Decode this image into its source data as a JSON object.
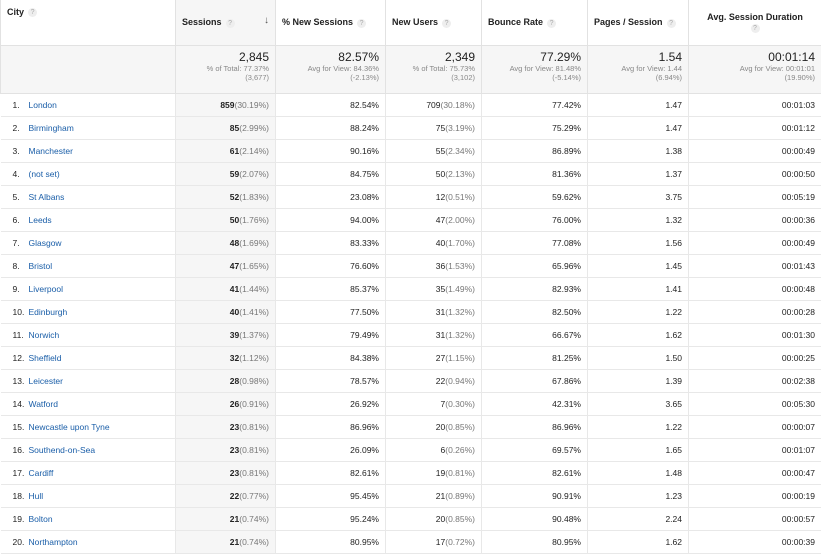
{
  "header": {
    "city": "City",
    "sessions": "Sessions",
    "new_sessions": "% New Sessions",
    "new_users": "New Users",
    "bounce_rate": "Bounce Rate",
    "pages_session": "Pages / Session",
    "avg_duration": "Avg. Session Duration",
    "help_glyph": "?",
    "sort_arrow": "↓"
  },
  "totals": {
    "sessions": {
      "value": "2,845",
      "sub1": "% of Total: 77.37%",
      "sub2": "(3,677)"
    },
    "new_sessions": {
      "value": "82.57%",
      "sub1": "Avg for View: 84.36%",
      "sub2": "(-2.13%)"
    },
    "new_users": {
      "value": "2,349",
      "sub1": "% of Total: 75.73%",
      "sub2": "(3,102)"
    },
    "bounce_rate": {
      "value": "77.29%",
      "sub1": "Avg for View: 81.48%",
      "sub2": "(-5.14%)"
    },
    "pages_session": {
      "value": "1.54",
      "sub1": "Avg for View: 1.44",
      "sub2": "(6.94%)"
    },
    "avg_duration": {
      "value": "00:01:14",
      "sub1": "Avg for View: 00:01:01",
      "sub2": "(19.90%)"
    }
  },
  "rows": [
    {
      "idx": "1.",
      "city": "London",
      "sessions": "859",
      "sessions_pct": "(30.19%)",
      "new_sessions": "82.54%",
      "new_users": "709",
      "new_users_pct": "(30.18%)",
      "bounce_rate": "77.42%",
      "pages_session": "1.47",
      "avg_duration": "00:01:03"
    },
    {
      "idx": "2.",
      "city": "Birmingham",
      "sessions": "85",
      "sessions_pct": "(2.99%)",
      "new_sessions": "88.24%",
      "new_users": "75",
      "new_users_pct": "(3.19%)",
      "bounce_rate": "75.29%",
      "pages_session": "1.47",
      "avg_duration": "00:01:12"
    },
    {
      "idx": "3.",
      "city": "Manchester",
      "sessions": "61",
      "sessions_pct": "(2.14%)",
      "new_sessions": "90.16%",
      "new_users": "55",
      "new_users_pct": "(2.34%)",
      "bounce_rate": "86.89%",
      "pages_session": "1.38",
      "avg_duration": "00:00:49"
    },
    {
      "idx": "4.",
      "city": "(not set)",
      "sessions": "59",
      "sessions_pct": "(2.07%)",
      "new_sessions": "84.75%",
      "new_users": "50",
      "new_users_pct": "(2.13%)",
      "bounce_rate": "81.36%",
      "pages_session": "1.37",
      "avg_duration": "00:00:50"
    },
    {
      "idx": "5.",
      "city": "St Albans",
      "sessions": "52",
      "sessions_pct": "(1.83%)",
      "new_sessions": "23.08%",
      "new_users": "12",
      "new_users_pct": "(0.51%)",
      "bounce_rate": "59.62%",
      "pages_session": "3.75",
      "avg_duration": "00:05:19"
    },
    {
      "idx": "6.",
      "city": "Leeds",
      "sessions": "50",
      "sessions_pct": "(1.76%)",
      "new_sessions": "94.00%",
      "new_users": "47",
      "new_users_pct": "(2.00%)",
      "bounce_rate": "76.00%",
      "pages_session": "1.32",
      "avg_duration": "00:00:36"
    },
    {
      "idx": "7.",
      "city": "Glasgow",
      "sessions": "48",
      "sessions_pct": "(1.69%)",
      "new_sessions": "83.33%",
      "new_users": "40",
      "new_users_pct": "(1.70%)",
      "bounce_rate": "77.08%",
      "pages_session": "1.56",
      "avg_duration": "00:00:49"
    },
    {
      "idx": "8.",
      "city": "Bristol",
      "sessions": "47",
      "sessions_pct": "(1.65%)",
      "new_sessions": "76.60%",
      "new_users": "36",
      "new_users_pct": "(1.53%)",
      "bounce_rate": "65.96%",
      "pages_session": "1.45",
      "avg_duration": "00:01:43"
    },
    {
      "idx": "9.",
      "city": "Liverpool",
      "sessions": "41",
      "sessions_pct": "(1.44%)",
      "new_sessions": "85.37%",
      "new_users": "35",
      "new_users_pct": "(1.49%)",
      "bounce_rate": "82.93%",
      "pages_session": "1.41",
      "avg_duration": "00:00:48"
    },
    {
      "idx": "10.",
      "city": "Edinburgh",
      "sessions": "40",
      "sessions_pct": "(1.41%)",
      "new_sessions": "77.50%",
      "new_users": "31",
      "new_users_pct": "(1.32%)",
      "bounce_rate": "82.50%",
      "pages_session": "1.22",
      "avg_duration": "00:00:28"
    },
    {
      "idx": "11.",
      "city": "Norwich",
      "sessions": "39",
      "sessions_pct": "(1.37%)",
      "new_sessions": "79.49%",
      "new_users": "31",
      "new_users_pct": "(1.32%)",
      "bounce_rate": "66.67%",
      "pages_session": "1.62",
      "avg_duration": "00:01:30"
    },
    {
      "idx": "12.",
      "city": "Sheffield",
      "sessions": "32",
      "sessions_pct": "(1.12%)",
      "new_sessions": "84.38%",
      "new_users": "27",
      "new_users_pct": "(1.15%)",
      "bounce_rate": "81.25%",
      "pages_session": "1.50",
      "avg_duration": "00:00:25"
    },
    {
      "idx": "13.",
      "city": "Leicester",
      "sessions": "28",
      "sessions_pct": "(0.98%)",
      "new_sessions": "78.57%",
      "new_users": "22",
      "new_users_pct": "(0.94%)",
      "bounce_rate": "67.86%",
      "pages_session": "1.39",
      "avg_duration": "00:02:38"
    },
    {
      "idx": "14.",
      "city": "Watford",
      "sessions": "26",
      "sessions_pct": "(0.91%)",
      "new_sessions": "26.92%",
      "new_users": "7",
      "new_users_pct": "(0.30%)",
      "bounce_rate": "42.31%",
      "pages_session": "3.65",
      "avg_duration": "00:05:30"
    },
    {
      "idx": "15.",
      "city": "Newcastle upon Tyne",
      "sessions": "23",
      "sessions_pct": "(0.81%)",
      "new_sessions": "86.96%",
      "new_users": "20",
      "new_users_pct": "(0.85%)",
      "bounce_rate": "86.96%",
      "pages_session": "1.22",
      "avg_duration": "00:00:07"
    },
    {
      "idx": "16.",
      "city": "Southend-on-Sea",
      "sessions": "23",
      "sessions_pct": "(0.81%)",
      "new_sessions": "26.09%",
      "new_users": "6",
      "new_users_pct": "(0.26%)",
      "bounce_rate": "69.57%",
      "pages_session": "1.65",
      "avg_duration": "00:01:07"
    },
    {
      "idx": "17.",
      "city": "Cardiff",
      "sessions": "23",
      "sessions_pct": "(0.81%)",
      "new_sessions": "82.61%",
      "new_users": "19",
      "new_users_pct": "(0.81%)",
      "bounce_rate": "82.61%",
      "pages_session": "1.48",
      "avg_duration": "00:00:47"
    },
    {
      "idx": "18.",
      "city": "Hull",
      "sessions": "22",
      "sessions_pct": "(0.77%)",
      "new_sessions": "95.45%",
      "new_users": "21",
      "new_users_pct": "(0.89%)",
      "bounce_rate": "90.91%",
      "pages_session": "1.23",
      "avg_duration": "00:00:19"
    },
    {
      "idx": "19.",
      "city": "Bolton",
      "sessions": "21",
      "sessions_pct": "(0.74%)",
      "new_sessions": "95.24%",
      "new_users": "20",
      "new_users_pct": "(0.85%)",
      "bounce_rate": "90.48%",
      "pages_session": "2.24",
      "avg_duration": "00:00:57"
    },
    {
      "idx": "20.",
      "city": "Northampton",
      "sessions": "21",
      "sessions_pct": "(0.74%)",
      "new_sessions": "80.95%",
      "new_users": "17",
      "new_users_pct": "(0.72%)",
      "bounce_rate": "80.95%",
      "pages_session": "1.62",
      "avg_duration": "00:00:39"
    }
  ],
  "colors": {
    "link": "#1a5ea8",
    "accent": "#4d90fe",
    "shaded_column": "#f6f6f6"
  }
}
